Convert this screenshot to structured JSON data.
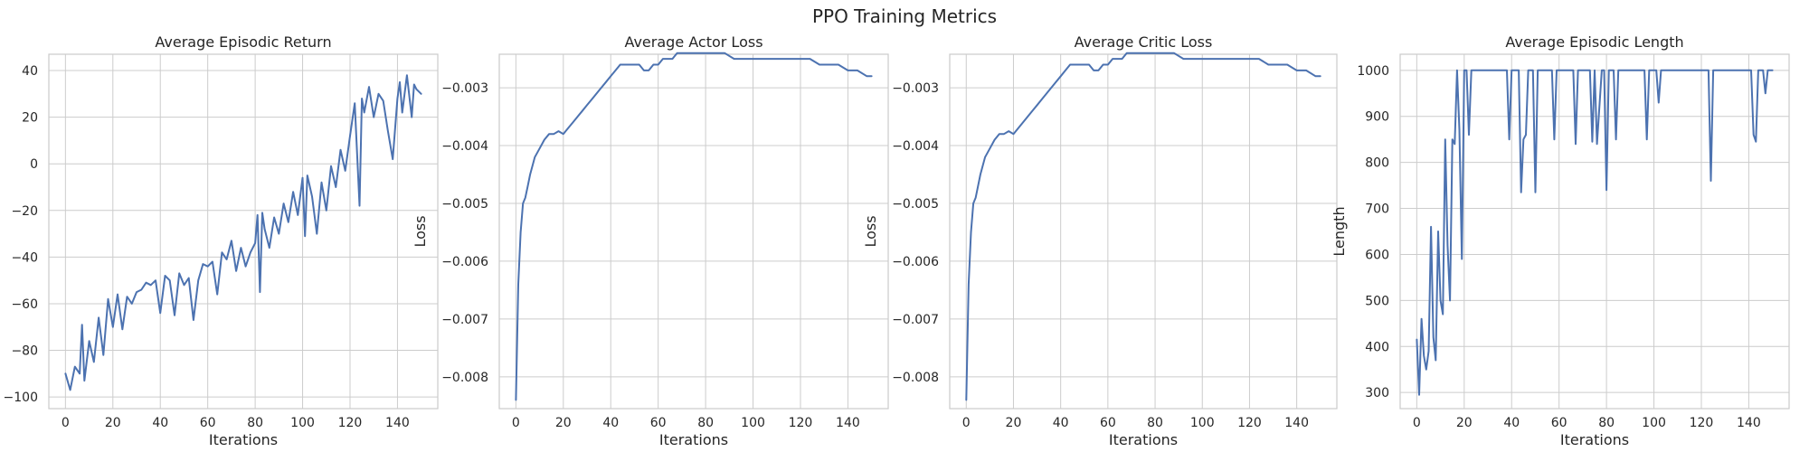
{
  "figure": {
    "title": "PPO Training Metrics"
  },
  "chart_data": [
    {
      "type": "line",
      "title": "Average Episodic Return",
      "xlabel": "Iterations",
      "ylabel": "",
      "xlim": [
        -7,
        157
      ],
      "ylim": [
        -105,
        47
      ],
      "xticks": [
        0,
        20,
        40,
        60,
        80,
        100,
        120,
        140
      ],
      "yticks": [
        -100,
        -80,
        -60,
        -40,
        -20,
        0,
        20,
        40
      ],
      "grid": true,
      "series": [
        {
          "color": "#4c72b0",
          "x": [
            0,
            2,
            4,
            6,
            7,
            8,
            10,
            12,
            14,
            16,
            18,
            20,
            22,
            24,
            26,
            28,
            30,
            32,
            34,
            36,
            38,
            40,
            42,
            44,
            46,
            48,
            50,
            52,
            54,
            56,
            58,
            60,
            62,
            64,
            66,
            68,
            70,
            72,
            74,
            76,
            78,
            80,
            81,
            82,
            83,
            84,
            86,
            88,
            90,
            92,
            94,
            96,
            98,
            100,
            101,
            102,
            104,
            106,
            108,
            110,
            112,
            114,
            116,
            118,
            120,
            122,
            124,
            125,
            126,
            128,
            130,
            132,
            134,
            136,
            138,
            140,
            141,
            142,
            144,
            146,
            147,
            148,
            150
          ],
          "y": [
            -90,
            -97,
            -87,
            -90,
            -69,
            -93,
            -76,
            -85,
            -66,
            -82,
            -58,
            -70,
            -56,
            -71,
            -57,
            -60,
            -55,
            -54,
            -51,
            -52,
            -50,
            -64,
            -48,
            -50,
            -65,
            -47,
            -52,
            -49,
            -67,
            -50,
            -43,
            -44,
            -42,
            -56,
            -38,
            -41,
            -33,
            -46,
            -36,
            -44,
            -38,
            -34,
            -22,
            -55,
            -21,
            -28,
            -36,
            -23,
            -30,
            -17,
            -25,
            -12,
            -22,
            -6,
            -31,
            -5,
            -14,
            -30,
            -8,
            -20,
            -1,
            -10,
            6,
            -3,
            12,
            26,
            -18,
            28,
            22,
            33,
            20,
            30,
            27,
            14,
            2,
            28,
            35,
            22,
            38,
            20,
            34,
            32,
            30
          ]
        }
      ]
    },
    {
      "type": "line",
      "title": "Average Actor Loss",
      "xlabel": "Iterations",
      "ylabel": "Loss",
      "xlim": [
        -7,
        157
      ],
      "ylim": [
        -0.00855,
        -0.00242
      ],
      "xticks": [
        0,
        20,
        40,
        60,
        80,
        100,
        120,
        140
      ],
      "yticks": [
        -0.008,
        -0.007,
        -0.006,
        -0.005,
        -0.004,
        -0.003
      ],
      "grid": true,
      "series": [
        {
          "color": "#4c72b0",
          "x": [
            0,
            1,
            2,
            3,
            4,
            5,
            6,
            7,
            8,
            10,
            12,
            14,
            16,
            18,
            20,
            22,
            24,
            26,
            28,
            30,
            32,
            34,
            36,
            38,
            40,
            42,
            44,
            46,
            48,
            50,
            52,
            54,
            56,
            58,
            60,
            62,
            64,
            66,
            68,
            70,
            72,
            74,
            76,
            78,
            80,
            84,
            88,
            92,
            96,
            100,
            104,
            108,
            112,
            116,
            120,
            124,
            128,
            132,
            136,
            140,
            144,
            148,
            150
          ],
          "y": [
            -0.0084,
            -0.0064,
            -0.0055,
            -0.005,
            -0.0049,
            -0.0047,
            -0.0045,
            -0.00435,
            -0.0042,
            -0.00405,
            -0.0039,
            -0.0038,
            -0.0038,
            -0.00375,
            -0.0038,
            -0.0037,
            -0.0036,
            -0.0035,
            -0.0034,
            -0.0033,
            -0.0032,
            -0.0031,
            -0.003,
            -0.0029,
            -0.0028,
            -0.0027,
            -0.0026,
            -0.0026,
            -0.0026,
            -0.0026,
            -0.0026,
            -0.0027,
            -0.0027,
            -0.0026,
            -0.0026,
            -0.0025,
            -0.0025,
            -0.0025,
            -0.0024,
            -0.0024,
            -0.0024,
            -0.0024,
            -0.0024,
            -0.0024,
            -0.0024,
            -0.0024,
            -0.0024,
            -0.0025,
            -0.0025,
            -0.0025,
            -0.0025,
            -0.0025,
            -0.0025,
            -0.0025,
            -0.0025,
            -0.0025,
            -0.0026,
            -0.0026,
            -0.0026,
            -0.0027,
            -0.0027,
            -0.0028,
            -0.0028
          ]
        }
      ]
    },
    {
      "type": "line",
      "title": "Average Critic Loss",
      "xlabel": "Iterations",
      "ylabel": "Loss",
      "xlim": [
        -7,
        157
      ],
      "ylim": [
        -0.00855,
        -0.00242
      ],
      "xticks": [
        0,
        20,
        40,
        60,
        80,
        100,
        120,
        140
      ],
      "yticks": [
        -0.008,
        -0.007,
        -0.006,
        -0.005,
        -0.004,
        -0.003
      ],
      "grid": true,
      "series": [
        {
          "color": "#4c72b0",
          "x": [
            0,
            1,
            2,
            3,
            4,
            5,
            6,
            7,
            8,
            10,
            12,
            14,
            16,
            18,
            20,
            22,
            24,
            26,
            28,
            30,
            32,
            34,
            36,
            38,
            40,
            42,
            44,
            46,
            48,
            50,
            52,
            54,
            56,
            58,
            60,
            62,
            64,
            66,
            68,
            70,
            72,
            74,
            76,
            78,
            80,
            84,
            88,
            92,
            96,
            100,
            104,
            108,
            112,
            116,
            120,
            124,
            128,
            132,
            136,
            140,
            144,
            148,
            150
          ],
          "y": [
            -0.0084,
            -0.0064,
            -0.0055,
            -0.005,
            -0.0049,
            -0.0047,
            -0.0045,
            -0.00435,
            -0.0042,
            -0.00405,
            -0.0039,
            -0.0038,
            -0.0038,
            -0.00375,
            -0.0038,
            -0.0037,
            -0.0036,
            -0.0035,
            -0.0034,
            -0.0033,
            -0.0032,
            -0.0031,
            -0.003,
            -0.0029,
            -0.0028,
            -0.0027,
            -0.0026,
            -0.0026,
            -0.0026,
            -0.0026,
            -0.0026,
            -0.0027,
            -0.0027,
            -0.0026,
            -0.0026,
            -0.0025,
            -0.0025,
            -0.0025,
            -0.0024,
            -0.0024,
            -0.0024,
            -0.0024,
            -0.0024,
            -0.0024,
            -0.0024,
            -0.0024,
            -0.0024,
            -0.0025,
            -0.0025,
            -0.0025,
            -0.0025,
            -0.0025,
            -0.0025,
            -0.0025,
            -0.0025,
            -0.0025,
            -0.0026,
            -0.0026,
            -0.0026,
            -0.0027,
            -0.0027,
            -0.0028,
            -0.0028
          ]
        }
      ]
    },
    {
      "type": "line",
      "title": "Average Episodic Length",
      "xlabel": "Iterations",
      "ylabel": "Length",
      "xlim": [
        -7,
        157
      ],
      "ylim": [
        265,
        1035
      ],
      "xticks": [
        0,
        20,
        40,
        60,
        80,
        100,
        120,
        140
      ],
      "yticks": [
        300,
        400,
        500,
        600,
        700,
        800,
        900,
        1000
      ],
      "grid": true,
      "series": [
        {
          "color": "#4c72b0",
          "x": [
            0,
            1,
            2,
            3,
            4,
            5,
            6,
            7,
            8,
            9,
            10,
            11,
            12,
            13,
            14,
            15,
            16,
            17,
            18,
            19,
            20,
            21,
            22,
            23,
            24,
            30,
            38,
            39,
            40,
            41,
            42,
            43,
            44,
            45,
            46,
            47,
            48,
            49,
            50,
            51,
            52,
            56,
            57,
            58,
            59,
            60,
            61,
            62,
            66,
            67,
            68,
            70,
            73,
            74,
            75,
            76,
            78,
            79,
            80,
            81,
            82,
            83,
            84,
            85,
            86,
            90,
            96,
            97,
            98,
            99,
            100,
            101,
            102,
            103,
            104,
            105,
            106,
            110,
            123,
            124,
            125,
            130,
            141,
            142,
            143,
            144,
            145,
            146,
            147,
            148,
            150
          ],
          "y": [
            415,
            295,
            460,
            380,
            350,
            390,
            660,
            420,
            370,
            650,
            500,
            470,
            850,
            620,
            500,
            850,
            840,
            1000,
            870,
            590,
            1000,
            1000,
            860,
            1000,
            1000,
            1000,
            1000,
            850,
            1000,
            1000,
            1000,
            1000,
            735,
            850,
            860,
            1000,
            1000,
            1000,
            735,
            1000,
            1000,
            1000,
            1000,
            850,
            1000,
            1000,
            1000,
            1000,
            1000,
            840,
            1000,
            1000,
            1000,
            845,
            1000,
            840,
            1000,
            1000,
            740,
            1000,
            1000,
            1000,
            850,
            1000,
            1000,
            1000,
            1000,
            850,
            1000,
            1000,
            1000,
            1000,
            930,
            1000,
            1000,
            1000,
            1000,
            1000,
            1000,
            760,
            1000,
            1000,
            1000,
            860,
            845,
            1000,
            1000,
            1000,
            950,
            1000,
            1000
          ]
        }
      ]
    }
  ]
}
